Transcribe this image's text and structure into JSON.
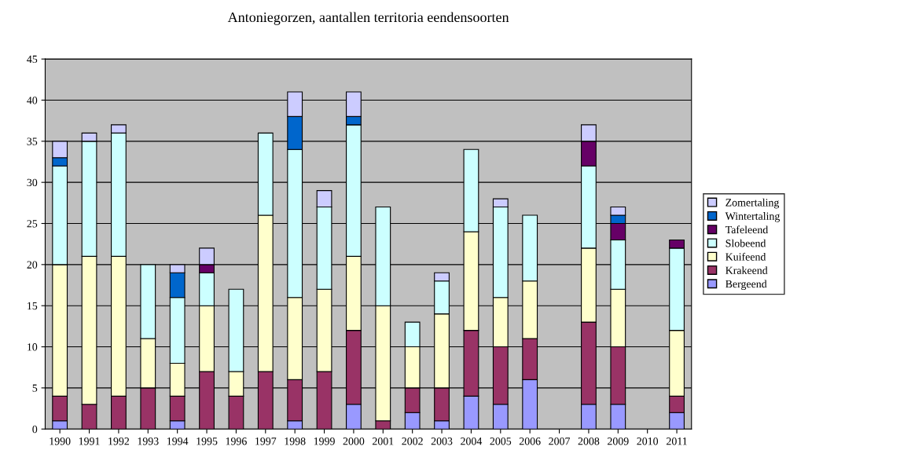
{
  "chart_data": {
    "type": "bar",
    "title": "Antoniegorzen, aantallen territoria eendensoorten",
    "stacked": true,
    "categories": [
      "1990",
      "1991",
      "1992",
      "1993",
      "1994",
      "1995",
      "1996",
      "1997",
      "1998",
      "1999",
      "2000",
      "2001",
      "2002",
      "2003",
      "2004",
      "2005",
      "2006",
      "2007",
      "2008",
      "2009",
      "2010",
      "2011"
    ],
    "series": [
      {
        "name": "Bergeend",
        "color": "#9999ff",
        "values": [
          1,
          null,
          null,
          null,
          1,
          null,
          null,
          null,
          1,
          null,
          3,
          null,
          2,
          1,
          4,
          3,
          6,
          null,
          3,
          3,
          null,
          2
        ]
      },
      {
        "name": "Krakeend",
        "color": "#993366",
        "values": [
          3,
          3,
          4,
          5,
          3,
          7,
          4,
          7,
          5,
          7,
          9,
          1,
          3,
          4,
          8,
          7,
          5,
          null,
          10,
          7,
          null,
          2
        ]
      },
      {
        "name": "Kuifeend",
        "color": "#ffffcc",
        "values": [
          16,
          18,
          17,
          6,
          4,
          8,
          3,
          19,
          10,
          10,
          9,
          14,
          5,
          9,
          12,
          6,
          7,
          null,
          9,
          7,
          null,
          8
        ]
      },
      {
        "name": "Slobeend",
        "color": "#ccffff",
        "values": [
          12,
          14,
          15,
          9,
          8,
          4,
          10,
          10,
          18,
          10,
          16,
          12,
          3,
          4,
          10,
          11,
          8,
          null,
          10,
          6,
          null,
          10
        ]
      },
      {
        "name": "Tafeleend",
        "color": "#660066",
        "values": [
          null,
          null,
          null,
          null,
          null,
          1,
          null,
          null,
          null,
          null,
          null,
          null,
          null,
          null,
          null,
          null,
          null,
          null,
          3,
          2,
          null,
          1
        ]
      },
      {
        "name": "Wintertaling",
        "color": "#0066cc",
        "values": [
          1,
          null,
          null,
          null,
          3,
          null,
          null,
          null,
          4,
          null,
          1,
          null,
          null,
          null,
          null,
          null,
          null,
          null,
          null,
          1,
          null,
          null
        ]
      },
      {
        "name": "Zomertaling",
        "color": "#ccccff",
        "values": [
          2,
          1,
          1,
          null,
          1,
          2,
          null,
          null,
          3,
          2,
          3,
          null,
          null,
          1,
          null,
          1,
          null,
          null,
          2,
          1,
          null,
          null
        ]
      }
    ],
    "ylim": [
      0,
      45
    ],
    "yticks": [
      0,
      5,
      10,
      15,
      20,
      25,
      30,
      35,
      40,
      45
    ],
    "grid": "y",
    "legend": "right"
  }
}
